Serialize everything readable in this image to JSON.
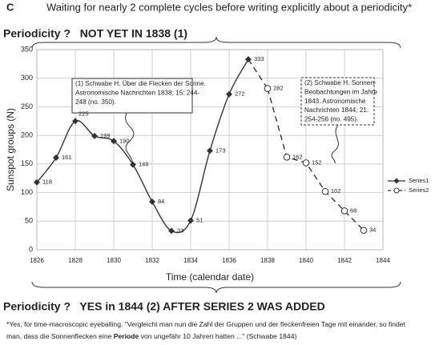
{
  "header": {
    "letter": "C",
    "title": "Waiting for nearly 2 complete cycles before writing explicitly about a periodicity*"
  },
  "top_note": "Periodicity ?   NOT YET IN 1838 (1)",
  "bottom_note": "Periodicity ?   YES in 1844 (2) AFTER SERIES 2 WAS ADDED",
  "footnote": {
    "line1": "*Yes, for time-macroscopic eyeballing. \"Vergleicht man nun die Zahl der Gruppen und der fleckenfreien Tage mit einander, so findet",
    "line2_before": "man, dass die Sonnenflecken eine ",
    "bold": "Periode",
    "line2_after": " von ungefähr 10 Jahren hatten ...\" (Schwabe 1844)"
  },
  "annotations": [
    {
      "lines": [
        "(1) Schwabe H. Über die Flecken der Sonne.",
        "Astronomische Nachrichten 1838; 15: 244-",
        "248 (no. 350)."
      ]
    },
    {
      "lines": [
        "(2) Schwabe H. Sonnen-",
        "Beobachtungen im Jahre",
        "1843. Astronomische",
        "Nachrichten 1844; 21:",
        "254-256 (no. 495)."
      ]
    }
  ],
  "chart_data": {
    "type": "line",
    "x_label": "Time (calendar date)",
    "y_label": "Sunspot groups (N)",
    "xlim": [
      1826,
      1844
    ],
    "xticks": [
      1826,
      1828,
      1830,
      1832,
      1834,
      1836,
      1838,
      1840,
      1842,
      1844
    ],
    "ylim": [
      0,
      350
    ],
    "yticks": [
      0,
      50,
      100,
      150,
      200,
      250,
      300,
      350
    ],
    "grid": true,
    "legend": "right",
    "series": [
      {
        "name": "Series1",
        "color": "#333333",
        "marker": "diamond",
        "dashed": false,
        "x": [
          1826,
          1827,
          1828,
          1829,
          1830,
          1831,
          1832,
          1833,
          1834,
          1835,
          1836,
          1837
        ],
        "values": [
          118,
          161,
          225,
          199,
          190,
          149,
          84,
          33,
          51,
          173,
          272,
          333
        ]
      },
      {
        "name": "Series2",
        "color": "#333333",
        "marker": "circle",
        "dashed": true,
        "x": [
          1838,
          1839,
          1840,
          1841,
          1842,
          1843
        ],
        "values": [
          282,
          162,
          152,
          102,
          68,
          34
        ]
      }
    ]
  }
}
